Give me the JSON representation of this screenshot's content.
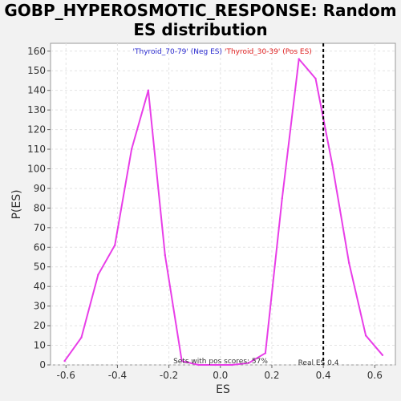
{
  "chart_data": {
    "type": "line",
    "title_line1": "GOBP_HYPEROSMOTIC_RESPONSE: Random",
    "title_line2": "ES distribution",
    "xlabel": "ES",
    "ylabel": "P(ES)",
    "xlim": [
      -0.66,
      0.68
    ],
    "ylim": [
      0,
      164
    ],
    "xticks": [
      -0.6,
      -0.4,
      -0.2,
      0.0,
      0.2,
      0.4,
      0.6
    ],
    "xtick_labels": [
      "-0.6",
      "-0.4",
      "-0.2",
      "0.0",
      "0.2",
      "0.4",
      "0.6"
    ],
    "yticks": [
      0,
      10,
      20,
      30,
      40,
      50,
      60,
      70,
      80,
      90,
      100,
      110,
      120,
      130,
      140,
      150,
      160
    ],
    "ytick_labels": [
      "0",
      "10",
      "20",
      "30",
      "40",
      "50",
      "60",
      "70",
      "80",
      "90",
      "100",
      "110",
      "120",
      "130",
      "140",
      "150",
      "160"
    ],
    "grid": true,
    "series": [
      {
        "color": "#e83ee8",
        "x": [
          -0.605,
          -0.54,
          -0.475,
          -0.41,
          -0.345,
          -0.28,
          -0.215,
          -0.15,
          -0.085,
          -0.02,
          0.045,
          0.11,
          0.175,
          0.24,
          0.305,
          0.37,
          0.435,
          0.5,
          0.565,
          0.63
        ],
        "y": [
          2,
          14,
          46,
          61,
          110,
          140,
          56,
          2,
          0,
          0,
          0,
          1,
          6,
          85,
          156,
          146,
          102,
          52,
          15,
          5
        ]
      }
    ],
    "legend": {
      "neg_label": "'Thyroid_70-79' (Neg ES)",
      "neg_color": "#2a2ad0",
      "pos_label": "'Thyroid_30-39' (Pos ES)",
      "pos_color": "#e02020"
    },
    "real_es": 0.4,
    "real_es_label": "Real ES 0.4",
    "pos_scores_label": "Sets with pos scores: 57%"
  }
}
